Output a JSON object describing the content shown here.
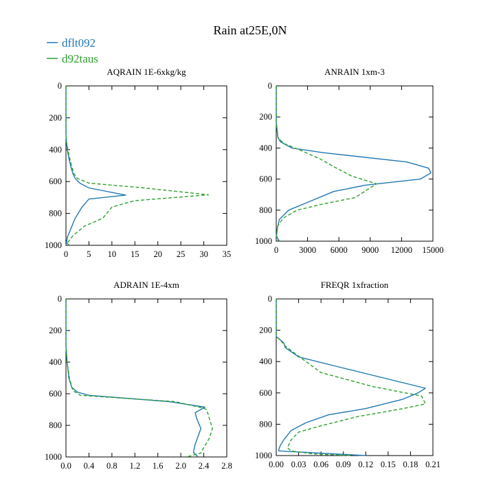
{
  "figure": {
    "title": "Rain at25E,0N",
    "legend": [
      {
        "name": "dflt092",
        "color": "#2077b4",
        "dash": false
      },
      {
        "name": "d92taus",
        "color": "#2ca02c",
        "dash": true
      }
    ]
  },
  "chart_data": [
    {
      "type": "line",
      "title": "AQRAIN  1E-6xkg/kg",
      "xlabel": "",
      "ylabel": "",
      "xlim": [
        0,
        35
      ],
      "ylim": [
        1000,
        0
      ],
      "xticks": [
        "0",
        "5",
        "10",
        "15",
        "20",
        "25",
        "30",
        "35"
      ],
      "yticks": [
        "0",
        "200",
        "400",
        "600",
        "800",
        "1000"
      ],
      "series": [
        {
          "name": "dflt092",
          "x": [
            0,
            0,
            0.1,
            0.3,
            0.6,
            1.0,
            1.5,
            2.0,
            3.0,
            5.0,
            13.0,
            5.0,
            3.5,
            2.0,
            1.0,
            0.3,
            0.1,
            0.8
          ],
          "y": [
            0,
            300,
            350,
            400,
            450,
            500,
            550,
            580,
            610,
            640,
            685,
            710,
            760,
            830,
            900,
            950,
            985,
            1000
          ]
        },
        {
          "name": "d92taus",
          "x": [
            0,
            0,
            0.1,
            0.4,
            0.8,
            1.2,
            1.7,
            2.5,
            5.0,
            17.0,
            31.0,
            15.0,
            10.0,
            8.0,
            4.0,
            1.5,
            0.3,
            0.6
          ],
          "y": [
            0,
            300,
            350,
            400,
            450,
            500,
            550,
            580,
            610,
            640,
            683,
            720,
            760,
            830,
            880,
            940,
            985,
            1000
          ]
        }
      ]
    },
    {
      "type": "line",
      "title": "ANRAIN  1xm-3",
      "xlabel": "",
      "ylabel": "",
      "xlim": [
        0,
        15000
      ],
      "ylim": [
        1000,
        0
      ],
      "xticks": [
        "0",
        "3000",
        "6000",
        "9000",
        "12000",
        "15000"
      ],
      "yticks": [
        "0",
        "200",
        "400",
        "600",
        "800",
        "1000"
      ],
      "series": [
        {
          "name": "dflt092",
          "x": [
            0,
            0,
            150,
            400,
            1500,
            4500,
            12500,
            14600,
            14800,
            13800,
            8500,
            5500,
            3000,
            1200,
            300,
            100,
            20,
            300
          ],
          "y": [
            0,
            230,
            330,
            360,
            400,
            430,
            490,
            530,
            560,
            600,
            640,
            680,
            750,
            800,
            860,
            920,
            970,
            1000
          ]
        },
        {
          "name": "d92taus",
          "x": [
            0,
            0,
            150,
            700,
            2500,
            4200,
            5500,
            7200,
            9600,
            8000,
            7500,
            4500,
            2000,
            700,
            150,
            20,
            200
          ],
          "y": [
            0,
            230,
            330,
            370,
            420,
            470,
            520,
            580,
            630,
            700,
            720,
            760,
            800,
            850,
            900,
            960,
            1000
          ]
        }
      ]
    },
    {
      "type": "line",
      "title": "ADRAIN  1E-4xm",
      "xlabel": "",
      "ylabel": "",
      "xlim": [
        0,
        2.8
      ],
      "ylim": [
        1000,
        0
      ],
      "xticks": [
        "0.0",
        "0.4",
        "0.8",
        "1.2",
        "1.6",
        "2.0",
        "2.4",
        "2.8"
      ],
      "yticks": [
        "0",
        "200",
        "400",
        "600",
        "800",
        "1000"
      ],
      "series": [
        {
          "name": "dflt092",
          "x": [
            0,
            0,
            0.02,
            0.05,
            0.1,
            0.2,
            0.4,
            1.8,
            2.42,
            2.25,
            2.28,
            2.35,
            2.3,
            2.25,
            2.22,
            2.3
          ],
          "y": [
            0,
            300,
            400,
            500,
            560,
            590,
            610,
            650,
            685,
            720,
            760,
            820,
            870,
            920,
            970,
            1000
          ]
        },
        {
          "name": "d92taus",
          "x": [
            0,
            0,
            0.02,
            0.06,
            0.12,
            0.25,
            1.9,
            2.38,
            2.45,
            2.5,
            2.55,
            2.5,
            2.4,
            2.35,
            2.1
          ],
          "y": [
            0,
            300,
            400,
            500,
            580,
            610,
            650,
            690,
            700,
            760,
            820,
            880,
            940,
            975,
            1000
          ]
        }
      ]
    },
    {
      "type": "line",
      "title": "FREQR  1xfraction",
      "xlabel": "",
      "ylabel": "",
      "xlim": [
        0,
        0.21
      ],
      "ylim": [
        1000,
        0
      ],
      "xticks": [
        "0.00",
        "0.03",
        "0.06",
        "0.09",
        "0.12",
        "0.15",
        "0.18",
        "0.21"
      ],
      "yticks": [
        "0",
        "200",
        "400",
        "600",
        "800",
        "1000"
      ],
      "series": [
        {
          "name": "dflt092",
          "x": [
            0,
            0,
            0.005,
            0.01,
            0.012,
            0.03,
            0.08,
            0.2,
            0.19,
            0.17,
            0.12,
            0.07,
            0.04,
            0.02,
            0.01,
            0.005,
            0.003,
            0.12
          ],
          "y": [
            0,
            240,
            260,
            280,
            310,
            370,
            430,
            570,
            600,
            640,
            700,
            740,
            790,
            840,
            900,
            940,
            970,
            1000
          ]
        },
        {
          "name": "d92taus",
          "x": [
            0,
            0,
            0.005,
            0.012,
            0.02,
            0.04,
            0.06,
            0.13,
            0.195,
            0.2,
            0.17,
            0.11,
            0.06,
            0.03,
            0.02,
            0.015,
            0.02,
            0.05,
            0.1
          ],
          "y": [
            0,
            240,
            260,
            300,
            330,
            400,
            470,
            560,
            620,
            670,
            700,
            750,
            810,
            850,
            900,
            950,
            970,
            990,
            1000
          ]
        }
      ]
    }
  ]
}
